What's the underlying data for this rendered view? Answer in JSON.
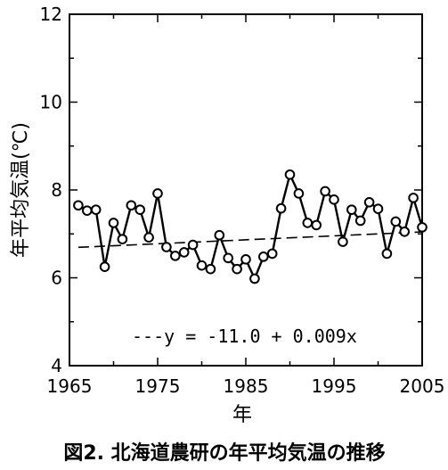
{
  "chart_data": {
    "type": "line",
    "caption": "図2. 北海道農研の年平均気温の推移",
    "xlabel": "年",
    "ylabel": "年平均気温(℃)",
    "xlim": [
      1965,
      2005
    ],
    "ylim": [
      4,
      12
    ],
    "x_ticks": [
      "1965",
      "1975",
      "1985",
      "1995",
      "2005"
    ],
    "y_ticks": [
      "4",
      "6",
      "8",
      "10",
      "12"
    ],
    "grid": false,
    "legend": "none",
    "series": [
      {
        "x": [
          1966,
          1967,
          1968,
          1969,
          1970,
          1971,
          1972,
          1973,
          1974,
          1975,
          1976,
          1977,
          1978,
          1979,
          1980,
          1981,
          1982,
          1983,
          1984,
          1985,
          1986,
          1987,
          1988,
          1989,
          1990,
          1991,
          1992,
          1993,
          1994,
          1995,
          1996,
          1997,
          1998,
          1999,
          2000,
          2001,
          2002,
          2003,
          2004,
          2005
        ],
        "y": [
          7.65,
          7.53,
          7.55,
          6.25,
          7.25,
          6.88,
          7.65,
          7.55,
          6.92,
          7.92,
          6.7,
          6.5,
          6.58,
          6.75,
          6.28,
          6.2,
          6.97,
          6.45,
          6.2,
          6.42,
          5.98,
          6.48,
          6.55,
          7.58,
          8.35,
          7.92,
          7.25,
          7.2,
          7.97,
          7.78,
          6.82,
          7.55,
          7.3,
          7.72,
          7.57,
          6.55,
          7.28,
          7.05,
          7.82,
          7.15
        ]
      }
    ],
    "trend": {
      "label": "---y = -11.0 + 0.009x",
      "intercept": -11.0,
      "slope": 0.009,
      "x_range": [
        1966,
        2005
      ]
    }
  }
}
